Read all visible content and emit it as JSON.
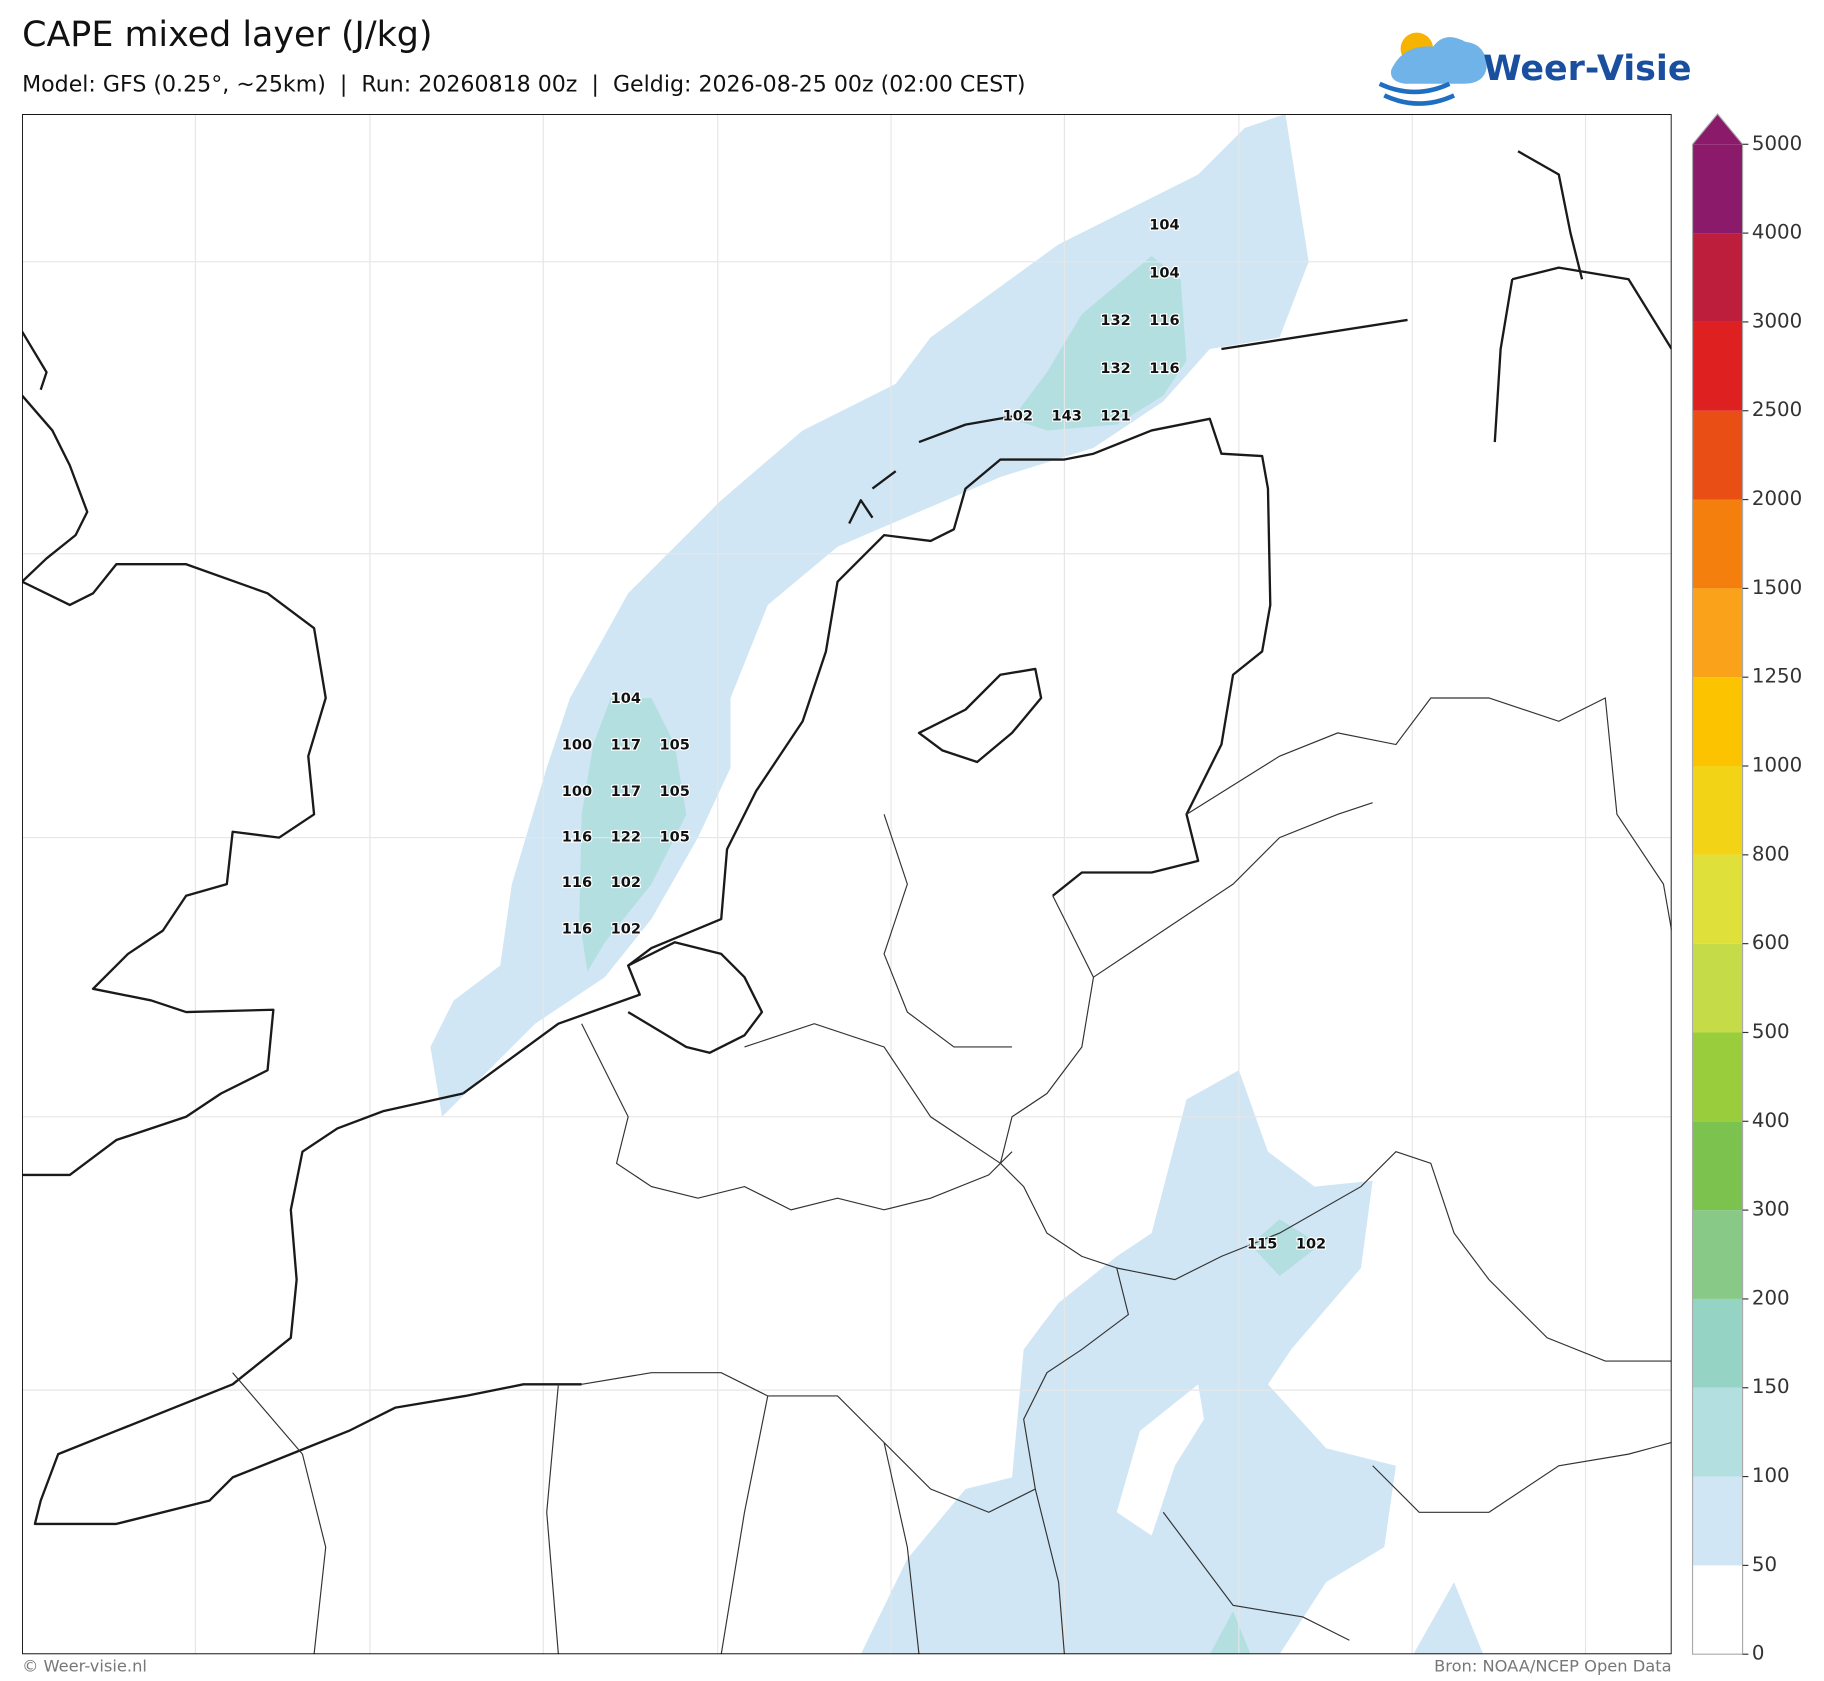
{
  "header": {
    "title": "CAPE mixed layer (J/kg)",
    "subtitle": "Model: GFS (0.25°, ~25km)  |  Run: 20260818 00z  |  Geldig: 2026-08-25 00z (02:00 CEST)",
    "logo": "Weer-Visie"
  },
  "map": {
    "value_labels": [
      104,
      104,
      132,
      116,
      132,
      116,
      102,
      143,
      121,
      104,
      100,
      117,
      105,
      100,
      117,
      105,
      116,
      122,
      105,
      116,
      102,
      116,
      102,
      115,
      102
    ]
  },
  "colorbar": {
    "levels": [
      0,
      50,
      100,
      150,
      200,
      300,
      400,
      500,
      600,
      800,
      1000,
      1250,
      1500,
      2000,
      2500,
      3000,
      4000,
      5000
    ],
    "colors": [
      "#ffffff",
      "#d0e6f5",
      "#b3dfe0",
      "#95d4c4",
      "#88c987",
      "#7bc24e",
      "#9acd3c",
      "#c5dc48",
      "#dfe03a",
      "#f2d316",
      "#fbc300",
      "#f9a21a",
      "#f57f0c",
      "#e94e14",
      "#de2020",
      "#bc1e3b",
      "#8b1a6a"
    ]
  },
  "footer": {
    "left": "© Weer-visie.nl",
    "right": "Bron: NOAA/NCEP Open Data"
  }
}
